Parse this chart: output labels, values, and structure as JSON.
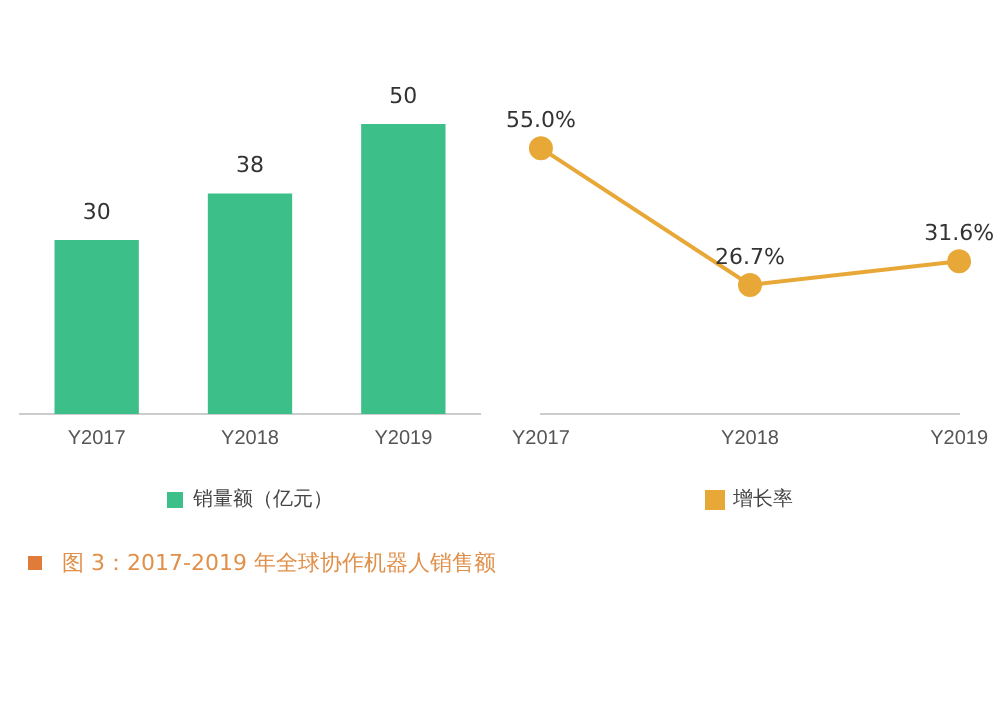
{
  "chart_data": [
    {
      "type": "bar",
      "categories": [
        "Y2017",
        "Y2018",
        "Y2019"
      ],
      "series": [
        {
          "name": "销量额（亿元）",
          "color": "#3dbf8a",
          "values": [
            30,
            38,
            50
          ]
        }
      ],
      "data_labels": true,
      "legend": "bottom",
      "grid": false,
      "annotations": [
        "图 3：2017-2019 年全球协作机器人销售额"
      ]
    },
    {
      "type": "line",
      "categories": [
        "Y2017",
        "Y2018",
        "Y2019"
      ],
      "series": [
        {
          "name": "增长率",
          "color": "#e8a838",
          "values": [
            55.0,
            26.7,
            31.6
          ],
          "value_labels": [
            "55.0%",
            "26.7%",
            "31.6%"
          ]
        }
      ],
      "marker": "circle",
      "legend": "bottom",
      "grid": false
    }
  ]
}
